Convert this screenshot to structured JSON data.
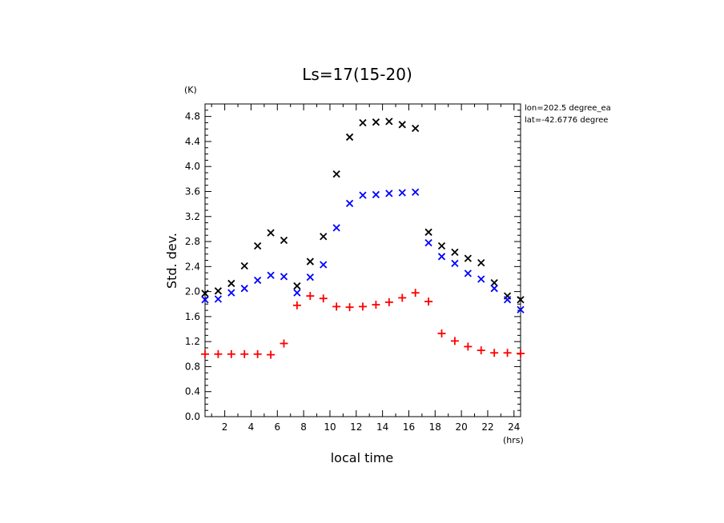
{
  "chart_data": {
    "type": "scatter",
    "title": "Ls=17(15-20)",
    "xlabel": "local time",
    "ylabel": "Std. dev.",
    "x_unit": "(hrs)",
    "y_unit": "(K)",
    "xlim": [
      0.5,
      24.5
    ],
    "ylim": [
      0.0,
      5.0
    ],
    "x_ticks": [
      2,
      4,
      6,
      8,
      10,
      12,
      14,
      16,
      18,
      20,
      22,
      24
    ],
    "y_ticks": [
      0.0,
      0.4,
      0.8,
      1.2,
      1.6,
      2.0,
      2.4,
      2.8,
      3.2,
      3.6,
      4.0,
      4.4,
      4.8
    ],
    "x_tick_labels": [
      "2",
      "4",
      "6",
      "8",
      "10",
      "12",
      "14",
      "16",
      "18",
      "20",
      "22",
      "24"
    ],
    "y_tick_labels": [
      "0.0",
      "0.4",
      "0.8",
      "1.2",
      "1.6",
      "2.0",
      "2.4",
      "2.8",
      "3.2",
      "3.6",
      "4.0",
      "4.4",
      "4.8"
    ],
    "annotations": [
      "lon=202.5 degree_ea",
      "lat=-42.6776 degree"
    ],
    "grid": false,
    "legend": "none",
    "x": [
      0.5,
      1.5,
      2.5,
      3.5,
      4.5,
      5.5,
      6.5,
      7.5,
      8.5,
      9.5,
      10.5,
      11.5,
      12.5,
      13.5,
      14.5,
      15.5,
      16.5,
      17.5,
      18.5,
      19.5,
      20.5,
      21.5,
      22.5,
      23.5,
      24.5
    ],
    "series": [
      {
        "marker": "x",
        "color": "#000000",
        "values": [
          1.97,
          2.01,
          2.13,
          2.41,
          2.73,
          2.94,
          2.82,
          2.09,
          2.48,
          2.88,
          3.88,
          4.47,
          4.7,
          4.71,
          4.72,
          4.67,
          4.61,
          2.95,
          2.73,
          2.63,
          2.53,
          2.46,
          2.14,
          1.93,
          1.87
        ]
      },
      {
        "marker": "x",
        "color": "#0000ff",
        "values": [
          1.87,
          1.88,
          1.98,
          2.05,
          2.18,
          2.26,
          2.24,
          1.98,
          2.23,
          2.43,
          3.02,
          3.41,
          3.54,
          3.55,
          3.57,
          3.58,
          3.59,
          2.78,
          2.56,
          2.45,
          2.29,
          2.2,
          2.05,
          1.87,
          1.71
        ]
      },
      {
        "marker": "+",
        "color": "#ff0000",
        "values": [
          1.0,
          1.0,
          1.0,
          1.0,
          1.0,
          0.99,
          1.17,
          1.78,
          1.93,
          1.89,
          1.76,
          1.75,
          1.76,
          1.79,
          1.83,
          1.9,
          1.98,
          1.84,
          1.33,
          1.21,
          1.12,
          1.06,
          1.02,
          1.02,
          1.01
        ]
      }
    ]
  }
}
